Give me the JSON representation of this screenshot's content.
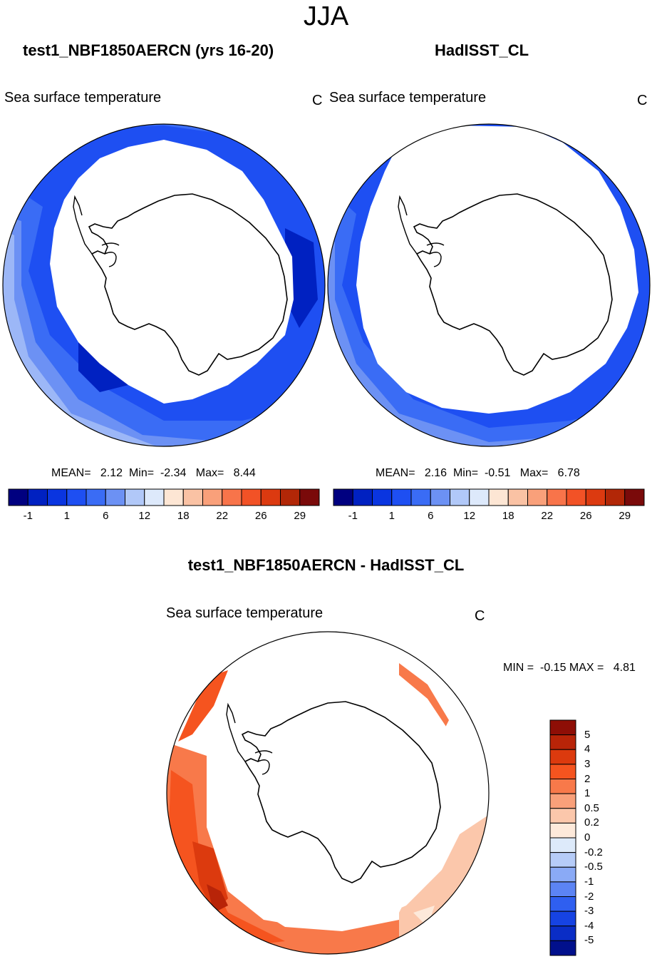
{
  "page_title": "JJA",
  "panels": [
    {
      "title": "test1_NBF1850AERCN (yrs 16-20)",
      "variable": "Sea surface temperature",
      "units": "C",
      "stats": "MEAN=   2.12  Min=  -2.34   Max=   8.44"
    },
    {
      "title": "HadISST_CL",
      "variable": "Sea surface temperature",
      "units": "C",
      "stats": "MEAN=   2.16  Min=  -0.51   Max=   6.78"
    }
  ],
  "colorbar_top": {
    "colors": [
      "#000080",
      "#0021c1",
      "#0a35e0",
      "#1e4ff2",
      "#3a6cf5",
      "#6c91f4",
      "#b1c8f8",
      "#dde9fb",
      "#fde6d4",
      "#fac2a4",
      "#f9a07a",
      "#f8744a",
      "#f25226",
      "#dc3a10",
      "#b22707",
      "#7a0a0a"
    ],
    "tick_labels": [
      "-1",
      "1",
      "6",
      "12",
      "18",
      "22",
      "26",
      "29"
    ]
  },
  "diff_panel": {
    "title": "test1_NBF1850AERCN - HadISST_CL",
    "variable": "Sea surface temperature",
    "units": "C",
    "stats": "MIN =  -0.15 MAX =   4.81"
  },
  "colorbar_diff": {
    "colors": [
      "#8e0e06",
      "#b82408",
      "#dc3a0e",
      "#f5541f",
      "#f8794a",
      "#f9a07a",
      "#fbc7ab",
      "#fde9da",
      "#ddeafa",
      "#b6ccf8",
      "#8aaaf6",
      "#5c84f4",
      "#2f5ff0",
      "#1643e3",
      "#0a2dc6",
      "#01108c"
    ],
    "tick_labels": [
      "5",
      "4",
      "3",
      "2",
      "1",
      "0.5",
      "0.2",
      "0",
      "-0.2",
      "-0.5",
      "-1",
      "-2",
      "-3",
      "-4",
      "-5"
    ]
  }
}
